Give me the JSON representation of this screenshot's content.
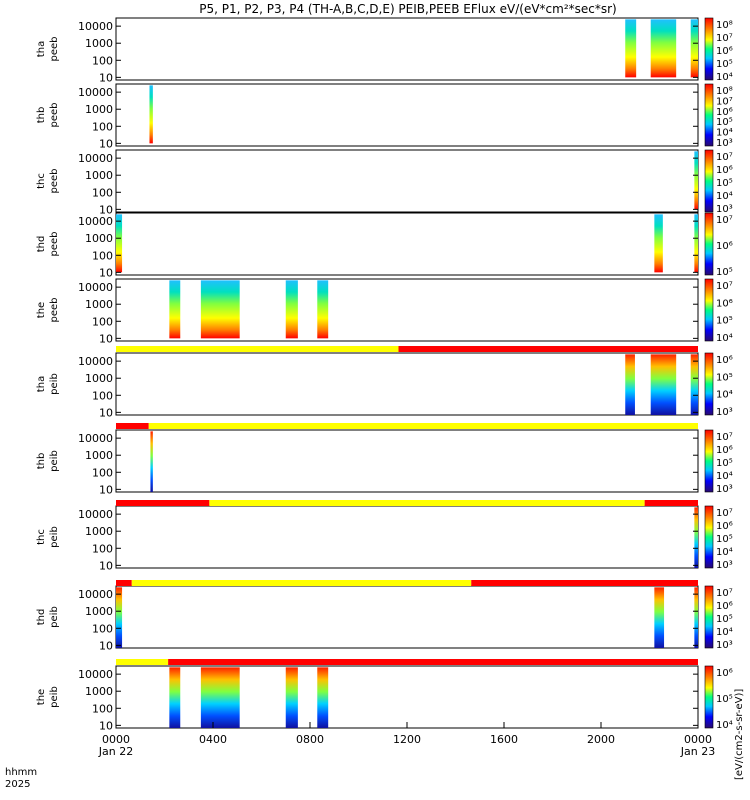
{
  "chart_data": {
    "type": "heatmap",
    "title": "P5, P1, P2, P3, P4 (TH-A,B,C,D,E) PEIB,PEEB EFlux eV/(eV*cm²*sec*sr)",
    "xaxis": {
      "tick_labels": [
        "0000",
        "0400",
        "0800",
        "1200",
        "1600",
        "2000",
        "0000"
      ],
      "tick_hours": [
        0,
        4,
        8,
        12,
        16,
        20,
        24
      ],
      "date_labels": [
        "Jan 22",
        "Jan 23"
      ],
      "corner_labels": [
        "hhmm",
        "2025"
      ],
      "range_hours": [
        0,
        24
      ]
    },
    "colorbar_label": "[eV/(cm2-s-sr-eV)]",
    "yscale": "log",
    "yticks": [
      "10",
      "100",
      "1000",
      "10000"
    ],
    "panels": [
      {
        "name": "tha peeb",
        "line1": "tha",
        "line2": "peeb",
        "cbar_ticks": [
          "10⁴",
          "10⁵",
          "10⁶",
          "10⁷",
          "10⁸"
        ],
        "blocks": [
          {
            "start": 21.0,
            "end": 21.45,
            "from": 10,
            "to": 25000
          },
          {
            "start": 22.05,
            "end": 23.1,
            "from": 10,
            "to": 25000
          },
          {
            "start": 23.7,
            "end": 24.0,
            "from": 10,
            "to": 25000
          }
        ]
      },
      {
        "name": "thb peeb",
        "line1": "thb",
        "line2": "peeb",
        "cbar_ticks": [
          "10³",
          "10⁴",
          "10⁵",
          "10⁶",
          "10⁷",
          "10⁸"
        ],
        "blocks": [
          {
            "start": 1.38,
            "end": 1.52,
            "from": 10,
            "to": 25000
          }
        ]
      },
      {
        "name": "thc peeb",
        "line1": "thc",
        "line2": "peeb",
        "cbar_ticks": [
          "10³",
          "10⁴",
          "10⁵",
          "10⁶",
          "10⁷"
        ],
        "blocks": [
          {
            "start": 23.85,
            "end": 24.0,
            "from": 10,
            "to": 25000
          }
        ]
      },
      {
        "name": "thd peeb",
        "line1": "thd",
        "line2": "peeb",
        "cbar_ticks": [
          "10⁵",
          "10⁶",
          "10⁷"
        ],
        "blocks": [
          {
            "start": 0.0,
            "end": 0.25,
            "from": 10,
            "to": 25000
          },
          {
            "start": 22.2,
            "end": 22.55,
            "from": 10,
            "to": 25000
          },
          {
            "start": 23.85,
            "end": 24.0,
            "from": 10,
            "to": 25000
          }
        ]
      },
      {
        "name": "the peeb",
        "line1": "the",
        "line2": "peeb",
        "cbar_ticks": [
          "10⁴",
          "10⁵",
          "10⁶",
          "10⁷"
        ],
        "blocks": [
          {
            "start": 2.2,
            "end": 2.65,
            "from": 10,
            "to": 25000
          },
          {
            "start": 3.5,
            "end": 5.1,
            "from": 10,
            "to": 25000
          },
          {
            "start": 7.0,
            "end": 7.5,
            "from": 10,
            "to": 25000
          },
          {
            "start": 8.3,
            "end": 8.75,
            "from": 10,
            "to": 25000
          }
        ]
      },
      {
        "name": "tha peib",
        "line1": "tha",
        "line2": "peib",
        "cbar_ticks": [
          "10³",
          "10⁴",
          "10⁵",
          "10⁶"
        ],
        "blocks": [
          {
            "start": 21.0,
            "end": 21.4,
            "from": 5,
            "to": 25000
          },
          {
            "start": 22.05,
            "end": 23.1,
            "from": 5,
            "to": 25000
          },
          {
            "start": 23.7,
            "end": 24.0,
            "from": 5,
            "to": 25000
          }
        ]
      },
      {
        "name": "thb peib",
        "line1": "thb",
        "line2": "peib",
        "cbar_ticks": [
          "10³",
          "10⁴",
          "10⁵",
          "10⁶",
          "10⁷"
        ],
        "blocks": [
          {
            "start": 1.42,
            "end": 1.52,
            "from": 5,
            "to": 25000
          }
        ]
      },
      {
        "name": "thc peib",
        "line1": "thc",
        "line2": "peib",
        "cbar_ticks": [
          "10³",
          "10⁴",
          "10⁵",
          "10⁶",
          "10⁷"
        ],
        "blocks": [
          {
            "start": 23.85,
            "end": 24.0,
            "from": 5,
            "to": 25000
          }
        ]
      },
      {
        "name": "thd peib",
        "line1": "thd",
        "line2": "peib",
        "cbar_ticks": [
          "10³",
          "10⁴",
          "10⁵",
          "10⁶",
          "10⁷"
        ],
        "blocks": [
          {
            "start": 0.0,
            "end": 0.25,
            "from": 5,
            "to": 25000
          },
          {
            "start": 22.2,
            "end": 22.6,
            "from": 5,
            "to": 25000
          },
          {
            "start": 23.85,
            "end": 24.0,
            "from": 5,
            "to": 25000
          }
        ]
      },
      {
        "name": "the peib",
        "line1": "the",
        "line2": "peib",
        "cbar_ticks": [
          "10⁴",
          "10⁵",
          "10⁶"
        ],
        "blocks": [
          {
            "start": 2.2,
            "end": 2.65,
            "from": 5,
            "to": 25000
          },
          {
            "start": 3.5,
            "end": 5.1,
            "from": 5,
            "to": 25000
          },
          {
            "start": 7.0,
            "end": 7.5,
            "from": 5,
            "to": 25000
          },
          {
            "start": 8.3,
            "end": 8.75,
            "from": 5,
            "to": 25000
          }
        ]
      }
    ],
    "status_bars": [
      {
        "after_panel": 5,
        "segments": [
          {
            "start": 0,
            "end": 11.65,
            "color": "#ffff00"
          },
          {
            "start": 11.65,
            "end": 24,
            "color": "#ff0000"
          }
        ]
      },
      {
        "after_panel": 6,
        "segments": [
          {
            "start": 0,
            "end": 1.35,
            "color": "#ff0000"
          },
          {
            "start": 1.35,
            "end": 24,
            "color": "#ffff00"
          }
        ]
      },
      {
        "after_panel": 7,
        "segments": [
          {
            "start": 0,
            "end": 3.85,
            "color": "#ff0000"
          },
          {
            "start": 3.85,
            "end": 21.8,
            "color": "#ffff00"
          },
          {
            "start": 21.8,
            "end": 24,
            "color": "#ff0000"
          }
        ]
      },
      {
        "after_panel": 8,
        "segments": [
          {
            "start": 0,
            "end": 0.65,
            "color": "#ff0000"
          },
          {
            "start": 0.65,
            "end": 14.65,
            "color": "#ffff00"
          },
          {
            "start": 14.65,
            "end": 24,
            "color": "#ff0000"
          }
        ]
      },
      {
        "after_panel": 9,
        "segments": [
          {
            "start": 0,
            "end": 2.15,
            "color": "#ffff00"
          },
          {
            "start": 2.15,
            "end": 24,
            "color": "#ff0000"
          }
        ]
      }
    ]
  }
}
